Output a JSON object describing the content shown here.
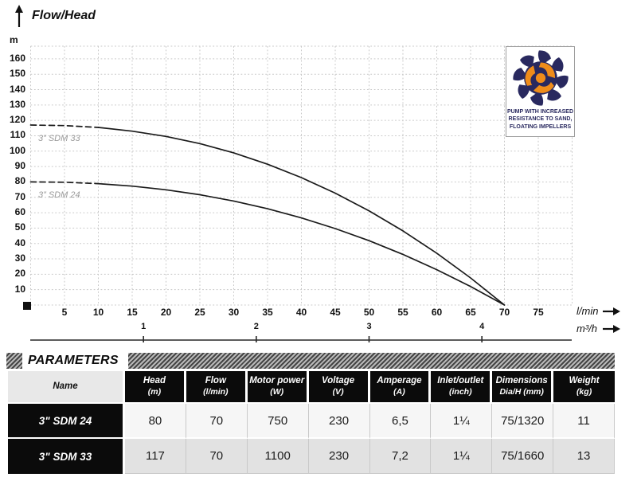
{
  "chart_data": {
    "type": "line",
    "title": "Flow/Head",
    "ylabel": "m",
    "xlabel_primary": "l/min",
    "xlabel_secondary": "m³/h",
    "grid": "dotted",
    "xlim_lmin": [
      0,
      80
    ],
    "ylim_m": [
      0,
      168
    ],
    "x_ticks_lmin": [
      5,
      10,
      15,
      20,
      25,
      30,
      35,
      40,
      45,
      50,
      55,
      60,
      65,
      70,
      75
    ],
    "y_ticks_m": [
      10,
      20,
      30,
      40,
      50,
      60,
      70,
      80,
      90,
      100,
      110,
      120,
      130,
      140,
      150,
      160
    ],
    "x2_ticks_m3h": [
      1,
      2,
      3,
      4
    ],
    "series": [
      {
        "name": "3” SDM 33",
        "x_lmin": [
          0,
          5,
          10,
          15,
          20,
          25,
          30,
          35,
          40,
          45,
          50,
          55,
          60,
          65,
          70
        ],
        "head_m": [
          117,
          116.6,
          115.4,
          113.0,
          109.6,
          104.9,
          98.9,
          91.5,
          82.8,
          72.7,
          61.2,
          48.2,
          33.7,
          17.6,
          0
        ],
        "dashed_until_lmin": 10
      },
      {
        "name": "3” SDM 24",
        "x_lmin": [
          0,
          5,
          10,
          15,
          20,
          25,
          30,
          35,
          40,
          45,
          50,
          55,
          60,
          65,
          70
        ],
        "head_m": [
          80,
          79.8,
          78.9,
          77.3,
          74.9,
          71.7,
          67.6,
          62.6,
          56.6,
          49.7,
          41.8,
          32.9,
          23.0,
          12.0,
          0
        ],
        "dashed_until_lmin": 10
      }
    ]
  },
  "badge": {
    "lines": [
      "PUMP WITH INCREASED",
      "RESISTANCE TO SAND,",
      "FLOATING IMPELLERS"
    ]
  },
  "icons": {
    "impeller": "impeller-icon",
    "arrow_up": "arrow-up-icon",
    "arrow_right": "arrow-right-icon"
  },
  "parameters": {
    "heading": "PARAMETERS",
    "columns": [
      {
        "label": "Name",
        "unit": ""
      },
      {
        "label": "Head",
        "unit": "(m)"
      },
      {
        "label": "Flow",
        "unit": "(l/min)"
      },
      {
        "label": "Motor power",
        "unit": "(W)"
      },
      {
        "label": "Voltage",
        "unit": "(V)"
      },
      {
        "label": "Amperage",
        "unit": "(A)"
      },
      {
        "label": "Inlet/outlet",
        "unit": "(inch)"
      },
      {
        "label": "Dimensions",
        "unit": "Dia/H (mm)"
      },
      {
        "label": "Weight",
        "unit": "(kg)"
      }
    ],
    "rows": [
      {
        "name": "3\" SDM 24",
        "values": [
          "80",
          "70",
          "750",
          "230",
          "6,5",
          "1¼",
          "75/1320",
          "11"
        ]
      },
      {
        "name": "3\" SDM 33",
        "values": [
          "117",
          "70",
          "1100",
          "230",
          "7,2",
          "1¼",
          "75/1660",
          "13"
        ]
      }
    ]
  },
  "colors": {
    "navy": "#29295f",
    "orange": "#ef8c1a",
    "curve": "#1a1a1a",
    "grid_line": "#c7c7c7",
    "table_header_bg": "#0b0b0b",
    "row1_bg": "#f6f6f6",
    "row2_bg": "#e2e2e2"
  }
}
